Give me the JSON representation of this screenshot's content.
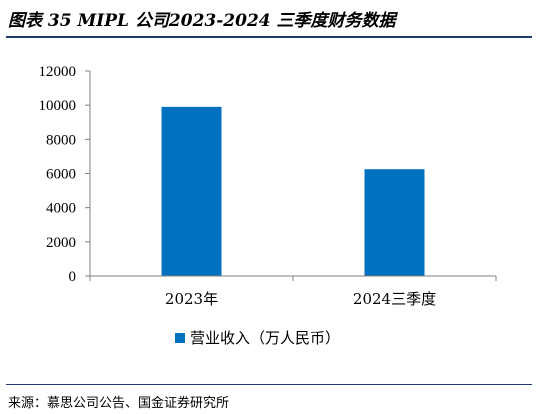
{
  "header": {
    "title": "图表 35 MIPL 公司2023-2024 三季度财务数据"
  },
  "footer": {
    "source": "来源：慕思公司公告、国金证券研究所"
  },
  "colors": {
    "bar": "#0070c0",
    "rule": "#1f3b6e",
    "axis": "#808080"
  },
  "chart_data": {
    "type": "bar",
    "categories": [
      "2023年",
      "2024三季度"
    ],
    "series": [
      {
        "name": "营业收入（万人民币）",
        "values": [
          9900,
          6250
        ]
      }
    ],
    "ylim": [
      0,
      12000
    ],
    "yticks": [
      0,
      2000,
      4000,
      6000,
      8000,
      10000,
      12000
    ],
    "grid": false,
    "legend": "bottom"
  }
}
